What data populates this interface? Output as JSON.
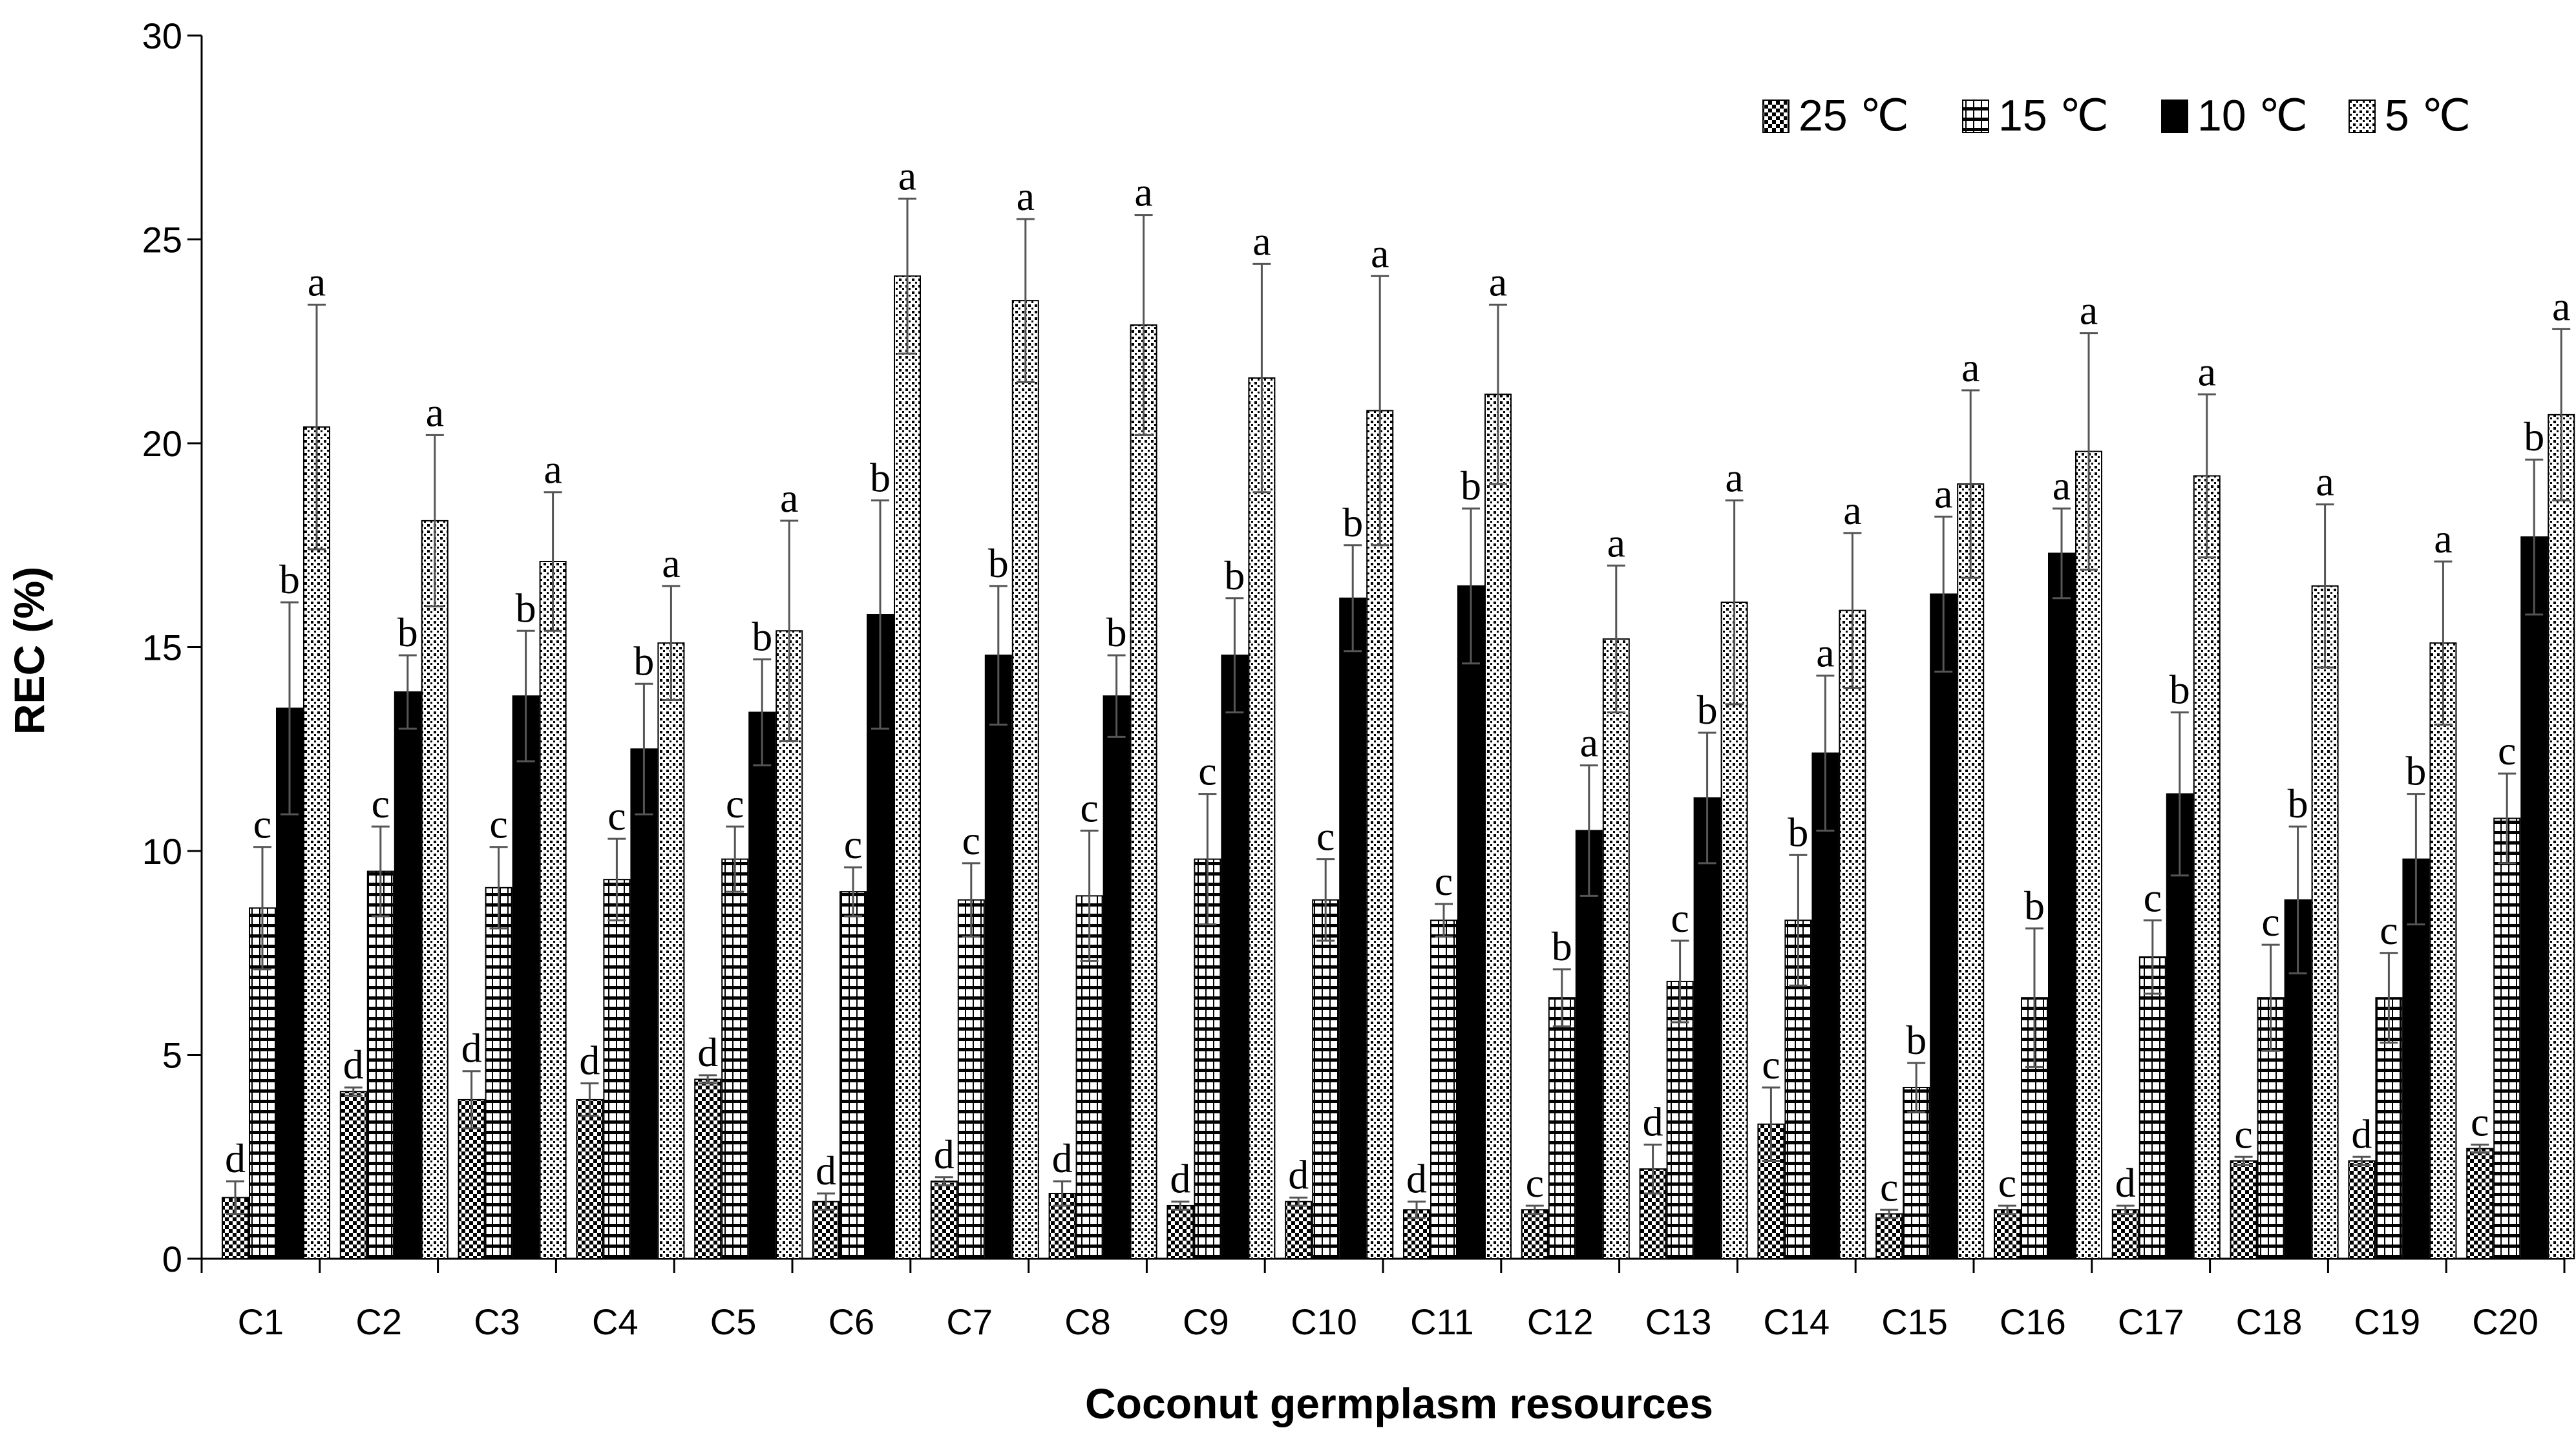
{
  "chart_data": {
    "type": "bar",
    "title": "",
    "xlabel": "Coconut germplasm resources",
    "ylabel": "REC (%)",
    "ylim": [
      0,
      30
    ],
    "yticks": [
      0,
      5,
      10,
      15,
      20,
      25,
      30
    ],
    "grid": false,
    "legend_position": "top-right",
    "categories": [
      "C1",
      "C2",
      "C3",
      "C4",
      "C5",
      "C6",
      "C7",
      "C8",
      "C9",
      "C10",
      "C11",
      "C12",
      "C13",
      "C14",
      "C15",
      "C16",
      "C17",
      "C18",
      "C19",
      "C20"
    ],
    "series": [
      {
        "name": "25 ℃",
        "pattern": "checker",
        "values": [
          1.5,
          4.1,
          3.9,
          3.9,
          4.4,
          1.4,
          1.9,
          1.6,
          1.3,
          1.4,
          1.2,
          1.2,
          2.2,
          3.3,
          1.1,
          1.2,
          1.2,
          2.4,
          2.4,
          2.7
        ],
        "errors": [
          0.4,
          0.1,
          0.7,
          0.4,
          0.1,
          0.2,
          0.1,
          0.3,
          0.1,
          0.1,
          0.2,
          0.1,
          0.6,
          0.9,
          0.1,
          0.1,
          0.1,
          0.1,
          0.1,
          0.1
        ],
        "letters": [
          "d",
          "d",
          "d",
          "d",
          "d",
          "d",
          "d",
          "d",
          "d",
          "d",
          "d",
          "c",
          "d",
          "c",
          "c",
          "c",
          "d",
          "c",
          "d",
          "c"
        ]
      },
      {
        "name": "15 ℃",
        "pattern": "hstripe",
        "values": [
          8.6,
          9.5,
          9.1,
          9.3,
          9.8,
          9.0,
          8.8,
          8.9,
          9.8,
          8.8,
          8.3,
          6.4,
          6.8,
          8.3,
          4.2,
          6.4,
          7.4,
          6.4,
          6.4,
          10.8
        ],
        "errors": [
          1.5,
          1.1,
          1.0,
          1.0,
          0.8,
          0.6,
          0.9,
          1.6,
          1.6,
          1.0,
          0.4,
          0.7,
          1.0,
          1.6,
          0.6,
          1.7,
          0.9,
          1.3,
          1.1,
          1.1
        ],
        "letters": [
          "c",
          "c",
          "c",
          "c",
          "c",
          "c",
          "c",
          "c",
          "c",
          "c",
          "c",
          "b",
          "c",
          "b",
          "b",
          "b",
          "c",
          "c",
          "c",
          "c"
        ]
      },
      {
        "name": "10 ℃",
        "pattern": "solid",
        "values": [
          13.5,
          13.9,
          13.8,
          12.5,
          13.4,
          15.8,
          14.8,
          13.8,
          14.8,
          16.2,
          16.5,
          10.5,
          11.3,
          12.4,
          16.3,
          17.3,
          11.4,
          8.8,
          9.8,
          17.7
        ],
        "errors": [
          2.6,
          0.9,
          1.6,
          1.6,
          1.3,
          2.8,
          1.7,
          1.0,
          1.4,
          1.3,
          1.9,
          1.6,
          1.6,
          1.9,
          1.9,
          1.1,
          2.0,
          1.8,
          1.6,
          1.9
        ],
        "letters": [
          "b",
          "b",
          "b",
          "b",
          "b",
          "b",
          "b",
          "b",
          "b",
          "b",
          "b",
          "a",
          "b",
          "a",
          "a",
          "a",
          "b",
          "b",
          "b",
          "b"
        ]
      },
      {
        "name": "5 ℃",
        "pattern": "dots",
        "values": [
          20.4,
          18.1,
          17.1,
          15.1,
          15.4,
          24.1,
          23.5,
          22.9,
          21.6,
          20.8,
          21.2,
          15.2,
          16.1,
          15.9,
          19.0,
          19.8,
          19.2,
          16.5,
          15.1,
          20.7
        ],
        "errors": [
          3.0,
          2.1,
          1.7,
          1.4,
          2.7,
          1.9,
          2.0,
          2.7,
          2.8,
          3.3,
          2.2,
          1.8,
          2.5,
          1.9,
          2.3,
          2.9,
          2.0,
          2.0,
          2.0,
          2.1
        ],
        "letters": [
          "a",
          "a",
          "a",
          "a",
          "a",
          "a",
          "a",
          "a",
          "a",
          "a",
          "a",
          "a",
          "a",
          "a",
          "a",
          "a",
          "a",
          "a",
          "a",
          "a"
        ]
      }
    ]
  }
}
